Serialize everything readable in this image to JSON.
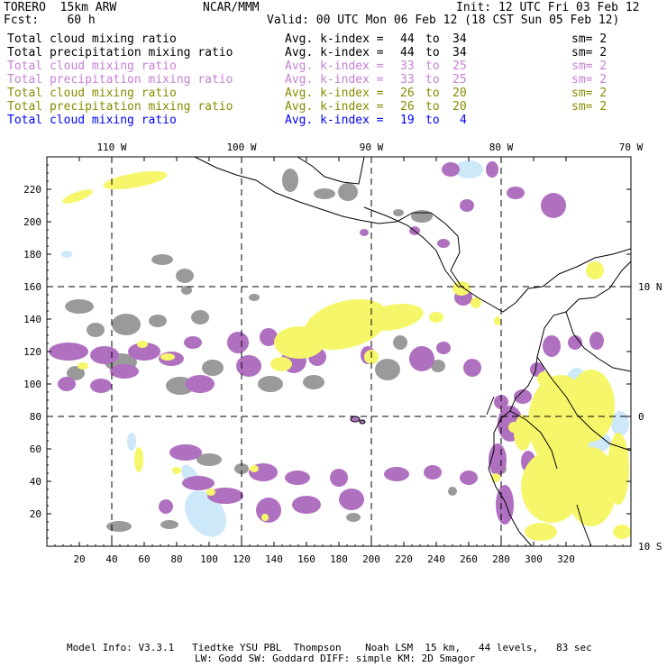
{
  "header": {
    "model": "TORERO  15km ARW",
    "institution": "NCAR/MMM",
    "init": "Init: 12 UTC Fri 03 Feb 12",
    "forecast": "Fcst:    60 h",
    "valid": "Valid: 00 UTC Mon 06 Feb 12 (18 CST Sun 05 Feb 12)"
  },
  "legend": [
    {
      "field": "Total cloud mixing ratio",
      "index_label": "Avg. k-index =",
      "from": "44",
      "to_word": "to",
      "to": "34",
      "sm": "sm= 2",
      "color": "#000000"
    },
    {
      "field": "Total precipitation mixing ratio",
      "index_label": "Avg. k-index =",
      "from": "44",
      "to_word": "to",
      "to": "34",
      "sm": "sm= 2",
      "color": "#000000"
    },
    {
      "field": "Total cloud mixing ratio",
      "index_label": "Avg. k-index =",
      "from": "33",
      "to_word": "to",
      "to": "25",
      "sm": "sm= 2",
      "color": "#c77fd6"
    },
    {
      "field": "Total precipitation mixing ratio",
      "index_label": "Avg. k-index =",
      "from": "33",
      "to_word": "to",
      "to": "25",
      "sm": "sm= 2",
      "color": "#c77fd6"
    },
    {
      "field": "Total cloud mixing ratio",
      "index_label": "Avg. k-index =",
      "from": "26",
      "to_word": "to",
      "to": "20",
      "sm": "sm= 2",
      "color": "#8a8a00"
    },
    {
      "field": "Total precipitation mixing ratio",
      "index_label": "Avg. k-index =",
      "from": "26",
      "to_word": "to",
      "to": "20",
      "sm": "sm= 2",
      "color": "#8a8a00"
    },
    {
      "field": "Total cloud mixing ratio",
      "index_label": "Avg. k-index =",
      "from": "19",
      "to_word": "to",
      "to": "4",
      "sm": "",
      "color": "#0000ff"
    }
  ],
  "map": {
    "lon_labels": [
      "110 W",
      "100 W",
      "90 W",
      "80 W",
      "70 W"
    ],
    "lat_labels": [
      "10 N",
      "0",
      "10 S"
    ],
    "y_ticks": [
      "220",
      "200",
      "180",
      "160",
      "140",
      "120",
      "100",
      "80",
      "60",
      "40",
      "20"
    ],
    "x_ticks": [
      "20",
      "40",
      "60",
      "80",
      "100",
      "120",
      "140",
      "160",
      "180",
      "200",
      "220",
      "240",
      "260",
      "280",
      "300",
      "320"
    ],
    "colors": {
      "gray_cloud": "#9a9a9a",
      "purple_cloud": "#b070c0",
      "yellow_cloud": "#f6f66a",
      "light_blue_cloud": "#cde8f8",
      "coastline": "#000000",
      "graticule": "#000000"
    }
  },
  "footer": {
    "line1": "Model Info: V3.3.1   Tiedtke YSU PBL  Thompson    Noah LSM  15 km,   44 levels,   83 sec",
    "line2": "LW: Godd SW: Goddard DIFF: simple KM: 2D Smagor"
  }
}
